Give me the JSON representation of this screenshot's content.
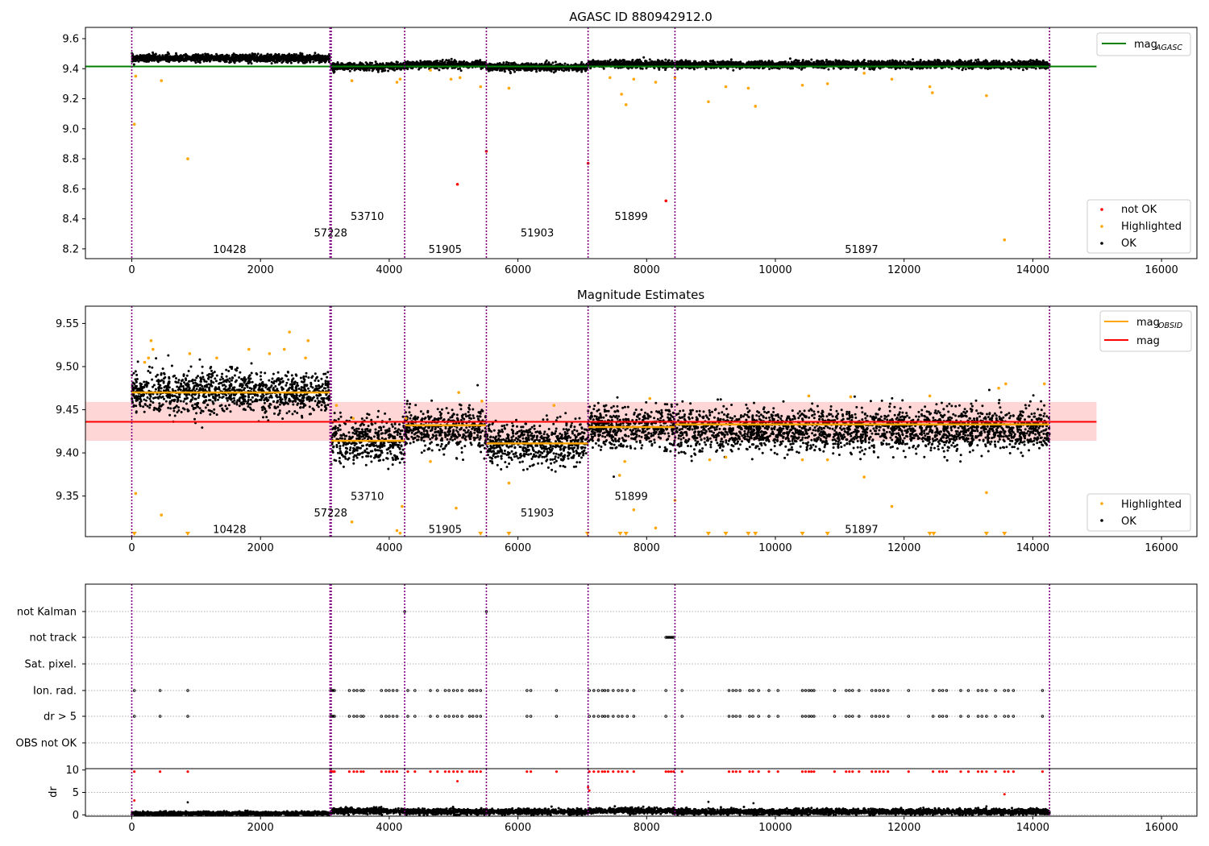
{
  "chart_data": [
    {
      "id": "agasc",
      "type": "scatter",
      "title": "AGASC ID 880942912.0",
      "xlim": [
        -720,
        16550
      ],
      "ylim": [
        8.135,
        9.675
      ],
      "xticks": [
        0,
        2000,
        4000,
        6000,
        8000,
        10000,
        12000,
        14000,
        16000
      ],
      "xtick_labels": [
        "0",
        "2000",
        "4000",
        "6000",
        "8000",
        "10000",
        "12000",
        "14000",
        "16000"
      ],
      "yticks": [
        8.2,
        8.4,
        8.6,
        8.8,
        9.0,
        9.2,
        9.4,
        9.6
      ],
      "ytick_labels": [
        "8.2",
        "8.4",
        "8.6",
        "8.8",
        "9.0",
        "9.2",
        "9.4",
        "9.6"
      ],
      "grid": false,
      "vlines": [
        0,
        3080,
        3100,
        4240,
        5510,
        7090,
        8440,
        14260
      ],
      "obs_labels": [
        {
          "x": 1520,
          "y": 8.195,
          "text": "10428"
        },
        {
          "x": 3090,
          "y": 8.305,
          "text": "57228"
        },
        {
          "x": 3660,
          "y": 8.415,
          "text": "53710"
        },
        {
          "x": 4870,
          "y": 8.195,
          "text": "51905"
        },
        {
          "x": 6300,
          "y": 8.305,
          "text": "51903"
        },
        {
          "x": 7760,
          "y": 8.415,
          "text": "51899"
        },
        {
          "x": 11340,
          "y": 8.195,
          "text": "51897"
        }
      ],
      "line_series": [
        {
          "name": "mag_AGASC",
          "color": "#008000",
          "x": [
            -720,
            14990
          ],
          "y": [
            9.415,
            9.415
          ]
        }
      ],
      "bands": [
        {
          "x0": 0,
          "x1": 3080,
          "y": 9.47,
          "sd": 0.012
        },
        {
          "x0": 3100,
          "x1": 4240,
          "y": 9.414,
          "sd": 0.012
        },
        {
          "x0": 4240,
          "x1": 5510,
          "y": 9.427,
          "sd": 0.012
        },
        {
          "x0": 5510,
          "x1": 7090,
          "y": 9.411,
          "sd": 0.012
        },
        {
          "x0": 7090,
          "x1": 8440,
          "y": 9.43,
          "sd": 0.012
        },
        {
          "x0": 8440,
          "x1": 14260,
          "y": 9.427,
          "sd": 0.012
        }
      ],
      "band_point_density": 0.42,
      "highlighted_points": [
        [
          40,
          9.03
        ],
        [
          60,
          9.35
        ],
        [
          460,
          9.32
        ],
        [
          870,
          8.8
        ],
        [
          3420,
          9.32
        ],
        [
          4120,
          9.31
        ],
        [
          4170,
          9.33
        ],
        [
          4640,
          9.39
        ],
        [
          4960,
          9.33
        ],
        [
          5100,
          9.34
        ],
        [
          5420,
          9.28
        ],
        [
          5860,
          9.27
        ],
        [
          7430,
          9.34
        ],
        [
          7610,
          9.23
        ],
        [
          7680,
          9.16
        ],
        [
          7800,
          9.33
        ],
        [
          8140,
          9.31
        ],
        [
          8440,
          9.34
        ],
        [
          8960,
          9.18
        ],
        [
          9230,
          9.28
        ],
        [
          9580,
          9.27
        ],
        [
          9690,
          9.15
        ],
        [
          10420,
          9.29
        ],
        [
          10810,
          9.3
        ],
        [
          11380,
          9.37
        ],
        [
          11810,
          9.33
        ],
        [
          12400,
          9.28
        ],
        [
          12440,
          9.24
        ],
        [
          13280,
          9.22
        ],
        [
          13560,
          8.26
        ]
      ],
      "not_ok_points": [
        [
          5060,
          8.63
        ],
        [
          5510,
          8.85
        ],
        [
          7090,
          8.77
        ],
        [
          8300,
          8.52
        ]
      ],
      "legend_upper": {
        "position": "upper right",
        "entries": [
          "mag_AGASC"
        ]
      },
      "legend_upper_parts": {
        "base": "mag",
        "sub": "AGASC"
      },
      "legend_lower": {
        "position": "lower right",
        "entries": [
          "not OK",
          "Highlighted",
          "OK"
        ]
      }
    },
    {
      "id": "estimates",
      "type": "scatter",
      "title": "Magnitude Estimates",
      "xlim": [
        -720,
        16550
      ],
      "ylim": [
        9.303,
        9.57
      ],
      "xticks": [
        0,
        2000,
        4000,
        6000,
        8000,
        10000,
        12000,
        14000,
        16000
      ],
      "xtick_labels": [
        "0",
        "2000",
        "4000",
        "6000",
        "8000",
        "10000",
        "12000",
        "14000",
        "16000"
      ],
      "yticks": [
        9.35,
        9.4,
        9.45,
        9.5,
        9.55
      ],
      "ytick_labels": [
        "9.35",
        "9.40",
        "9.45",
        "9.50",
        "9.55"
      ],
      "grid": false,
      "vlines": [
        0,
        3080,
        3100,
        4240,
        5510,
        7090,
        8440,
        14260
      ],
      "obs_labels": [
        {
          "x": 1520,
          "y": 9.311,
          "text": "10428"
        },
        {
          "x": 3090,
          "y": 9.33,
          "text": "57228"
        },
        {
          "x": 3660,
          "y": 9.349,
          "text": "53710"
        },
        {
          "x": 4870,
          "y": 9.311,
          "text": "51905"
        },
        {
          "x": 6300,
          "y": 9.33,
          "text": "51903"
        },
        {
          "x": 7760,
          "y": 9.349,
          "text": "51899"
        },
        {
          "x": 11340,
          "y": 9.311,
          "text": "51897"
        }
      ],
      "shaded_band": {
        "x0": -720,
        "x1": 14990,
        "y0": 9.414,
        "y1": 9.459,
        "color": "#ffd6d6"
      },
      "line_series": [
        {
          "name": "mag",
          "color": "#ff0000",
          "x": [
            -720,
            14990
          ],
          "y": [
            9.436,
            9.436
          ]
        }
      ],
      "segments": [
        {
          "name": "mag_OBSID",
          "color": "#ffa500",
          "x0": 0,
          "x1": 3080,
          "y": 9.47
        },
        {
          "name": "mag_OBSID",
          "color": "#ffa500",
          "x0": 3100,
          "x1": 4240,
          "y": 9.414
        },
        {
          "name": "mag_OBSID",
          "color": "#ffa500",
          "x0": 4240,
          "x1": 5510,
          "y": 9.432
        },
        {
          "name": "mag_OBSID",
          "color": "#ffa500",
          "x0": 5510,
          "x1": 7090,
          "y": 9.411
        },
        {
          "name": "mag_OBSID",
          "color": "#ffa500",
          "x0": 7090,
          "x1": 8440,
          "y": 9.43
        },
        {
          "name": "mag_OBSID",
          "color": "#ffa500",
          "x0": 8440,
          "x1": 14260,
          "y": 9.433
        }
      ],
      "bands": [
        {
          "x0": 0,
          "x1": 3080,
          "y": 9.47,
          "sd": 0.012
        },
        {
          "x0": 3100,
          "x1": 4240,
          "y": 9.414,
          "sd": 0.012
        },
        {
          "x0": 4240,
          "x1": 5510,
          "y": 9.427,
          "sd": 0.012
        },
        {
          "x0": 5510,
          "x1": 7090,
          "y": 9.411,
          "sd": 0.012
        },
        {
          "x0": 7090,
          "x1": 8440,
          "y": 9.43,
          "sd": 0.012
        },
        {
          "x0": 8440,
          "x1": 14260,
          "y": 9.427,
          "sd": 0.012
        }
      ],
      "band_point_density": 0.38,
      "highlighted_points": [
        [
          200,
          9.505
        ],
        [
          260,
          9.51
        ],
        [
          300,
          9.53
        ],
        [
          330,
          9.52
        ],
        [
          900,
          9.515
        ],
        [
          1320,
          9.51
        ],
        [
          1820,
          9.52
        ],
        [
          2140,
          9.515
        ],
        [
          2370,
          9.52
        ],
        [
          2450,
          9.54
        ],
        [
          2700,
          9.51
        ],
        [
          2740,
          9.53
        ],
        [
          3180,
          9.455
        ],
        [
          3440,
          9.44
        ],
        [
          4200,
          9.338
        ],
        [
          4120,
          9.31
        ],
        [
          4260,
          9.44
        ],
        [
          4640,
          9.39
        ],
        [
          5040,
          9.336
        ],
        [
          5080,
          9.47
        ],
        [
          5440,
          9.46
        ],
        [
          5860,
          9.365
        ],
        [
          6560,
          9.455
        ],
        [
          7580,
          9.374
        ],
        [
          7660,
          9.39
        ],
        [
          7800,
          9.334
        ],
        [
          8050,
          9.463
        ],
        [
          8140,
          9.313
        ],
        [
          8440,
          9.345
        ],
        [
          8980,
          9.392
        ],
        [
          9230,
          9.395
        ],
        [
          10420,
          9.392
        ],
        [
          10520,
          9.466
        ],
        [
          10810,
          9.392
        ],
        [
          11170,
          9.465
        ],
        [
          11380,
          9.372
        ],
        [
          11810,
          9.338
        ],
        [
          12400,
          9.466
        ],
        [
          13280,
          9.354
        ],
        [
          13470,
          9.475
        ],
        [
          13580,
          9.48
        ],
        [
          14180,
          9.48
        ],
        [
          60,
          9.353
        ],
        [
          460,
          9.328
        ],
        [
          3420,
          9.32
        ],
        [
          4170,
          9.307
        ]
      ],
      "floor_markers": [
        40,
        870,
        5420,
        5860,
        7080,
        7590,
        7680,
        8960,
        9230,
        9580,
        9690,
        10420,
        10810,
        12400,
        12460,
        13280,
        13560
      ],
      "legend_upper": {
        "position": "upper right",
        "entries": [
          "mag_OBSID",
          "mag"
        ]
      },
      "legend_upper_parts": {
        "base": "mag",
        "sub": "OBSID",
        "second": "mag"
      },
      "legend_lower": {
        "position": "lower right",
        "entries": [
          "Highlighted",
          "OK"
        ]
      }
    },
    {
      "id": "flags",
      "type": "scatter",
      "title": "",
      "xlim": [
        -720,
        16550
      ],
      "xticks": [
        0,
        2000,
        4000,
        6000,
        8000,
        10000,
        12000,
        14000,
        16000
      ],
      "xtick_labels": [
        "0",
        "2000",
        "4000",
        "6000",
        "8000",
        "10000",
        "12000",
        "14000",
        "16000"
      ],
      "flag_rows": [
        "not Kalman",
        "not track",
        "Sat. pixel.",
        "Ion. rad.",
        "dr > 5",
        "OBS not OK"
      ],
      "grid": true,
      "vlines": [
        0,
        3080,
        3100,
        4240,
        5510,
        7090,
        8440,
        14260
      ],
      "flag_points": {
        "not Kalman": [
          4240,
          5510
        ],
        "not track": [
          8300,
          8320,
          8340,
          8360,
          8380,
          8400,
          8420
        ],
        "Sat. pixel.": [],
        "Ion. rad.": [
          40,
          440,
          870,
          3090,
          3110,
          3130,
          3150,
          3380,
          3450,
          3500,
          3560,
          3600,
          3880,
          3950,
          4000,
          4060,
          4120,
          4290,
          4400,
          4640,
          4750,
          4870,
          4930,
          5000,
          5060,
          5130,
          5250,
          5300,
          5360,
          5420,
          6140,
          6200,
          6600,
          7110,
          7180,
          7250,
          7310,
          7350,
          7400,
          7480,
          7560,
          7620,
          7700,
          7800,
          8300,
          8550,
          9280,
          9340,
          9390,
          9450,
          9600,
          9650,
          9740,
          9900,
          10040,
          10420,
          10470,
          10520,
          10560,
          10600,
          10920,
          11100,
          11150,
          11200,
          11300,
          11500,
          11560,
          11620,
          11680,
          11750,
          12070,
          12450,
          12550,
          12600,
          12660,
          12880,
          13000,
          13150,
          13210,
          13280,
          13420,
          13560,
          13620,
          13700,
          14150
        ],
        "dr > 5": [
          40,
          440,
          870,
          3090,
          3110,
          3130,
          3150,
          3380,
          3450,
          3500,
          3560,
          3600,
          3880,
          3950,
          4000,
          4060,
          4120,
          4290,
          4400,
          4640,
          4750,
          4870,
          4930,
          5000,
          5060,
          5130,
          5250,
          5300,
          5360,
          5420,
          6140,
          6200,
          6600,
          7110,
          7180,
          7250,
          7310,
          7350,
          7400,
          7480,
          7560,
          7620,
          7700,
          7800,
          8300,
          8550,
          9280,
          9340,
          9390,
          9450,
          9600,
          9650,
          9740,
          9900,
          10040,
          10420,
          10470,
          10520,
          10560,
          10600,
          10920,
          11100,
          11150,
          11200,
          11300,
          11500,
          11560,
          11620,
          11680,
          11750,
          12070,
          12450,
          12550,
          12600,
          12660,
          12880,
          13000,
          13150,
          13210,
          13280,
          13420,
          13560,
          13620,
          13700,
          14150
        ],
        "OBS not OK": []
      }
    },
    {
      "id": "dr",
      "type": "scatter",
      "title": "",
      "ylabel": "dr",
      "xlim": [
        -720,
        16550
      ],
      "ylim": [
        -0.3,
        10.3
      ],
      "xticks": [
        0,
        2000,
        4000,
        6000,
        8000,
        10000,
        12000,
        14000,
        16000
      ],
      "xtick_labels": [
        "0",
        "2000",
        "4000",
        "6000",
        "8000",
        "10000",
        "12000",
        "14000",
        "16000"
      ],
      "yticks": [
        0,
        5,
        10
      ],
      "ytick_labels": [
        "0",
        "5",
        "10"
      ],
      "grid": true,
      "vlines": [
        0,
        3080,
        3100,
        4240,
        5510,
        7090,
        8440,
        14260
      ],
      "bands": [
        {
          "x0": 0,
          "x1": 3080,
          "y": 0.3,
          "sd": 0.2
        },
        {
          "x0": 3100,
          "x1": 4240,
          "y": 0.9,
          "sd": 0.3
        },
        {
          "x0": 4240,
          "x1": 5510,
          "y": 0.7,
          "sd": 0.3
        },
        {
          "x0": 5510,
          "x1": 7090,
          "y": 0.7,
          "sd": 0.3
        },
        {
          "x0": 7090,
          "x1": 8440,
          "y": 0.9,
          "sd": 0.3
        },
        {
          "x0": 8440,
          "x1": 14260,
          "y": 0.7,
          "sd": 0.3
        }
      ],
      "band_point_density": 0.4,
      "clipped_points": [
        40,
        440,
        870,
        3090,
        3110,
        3130,
        3150,
        3380,
        3450,
        3500,
        3560,
        3600,
        3880,
        3950,
        4000,
        4060,
        4120,
        4290,
        4400,
        4640,
        4750,
        4870,
        4930,
        5000,
        5060,
        5130,
        5250,
        5300,
        5360,
        5420,
        6140,
        6200,
        6600,
        7110,
        7180,
        7250,
        7310,
        7350,
        7400,
        7480,
        7560,
        7620,
        7700,
        7800,
        8300,
        8340,
        8380,
        8420,
        8550,
        9280,
        9340,
        9390,
        9450,
        9600,
        9650,
        9740,
        9900,
        10040,
        10420,
        10470,
        10520,
        10560,
        10600,
        10920,
        11100,
        11150,
        11200,
        11300,
        11500,
        11560,
        11620,
        11680,
        11750,
        12070,
        12450,
        12550,
        12600,
        12660,
        12880,
        13000,
        13150,
        13210,
        13280,
        13420,
        13560,
        13620,
        13700,
        14150
      ],
      "red_points": [
        [
          5060,
          7.5
        ],
        [
          7090,
          6.2
        ],
        [
          7110,
          5.4
        ],
        [
          13560,
          4.6
        ],
        [
          40,
          3.2
        ]
      ],
      "outlier_points": [
        [
          870,
          2.8
        ],
        [
          8960,
          2.9
        ],
        [
          9660,
          2.6
        ],
        [
          13280,
          1.9
        ],
        [
          12300,
          1.6
        ]
      ]
    }
  ],
  "colors": {
    "ok": "#000000",
    "highlighted": "#ffa500",
    "not_ok": "#ff0000",
    "vline": "#800080",
    "agasc_line": "#008000",
    "mag_line": "#ff0000",
    "obsid_line": "#ffa500",
    "band_fill": "#ffd6d6",
    "grid": "#b0b0b0"
  }
}
